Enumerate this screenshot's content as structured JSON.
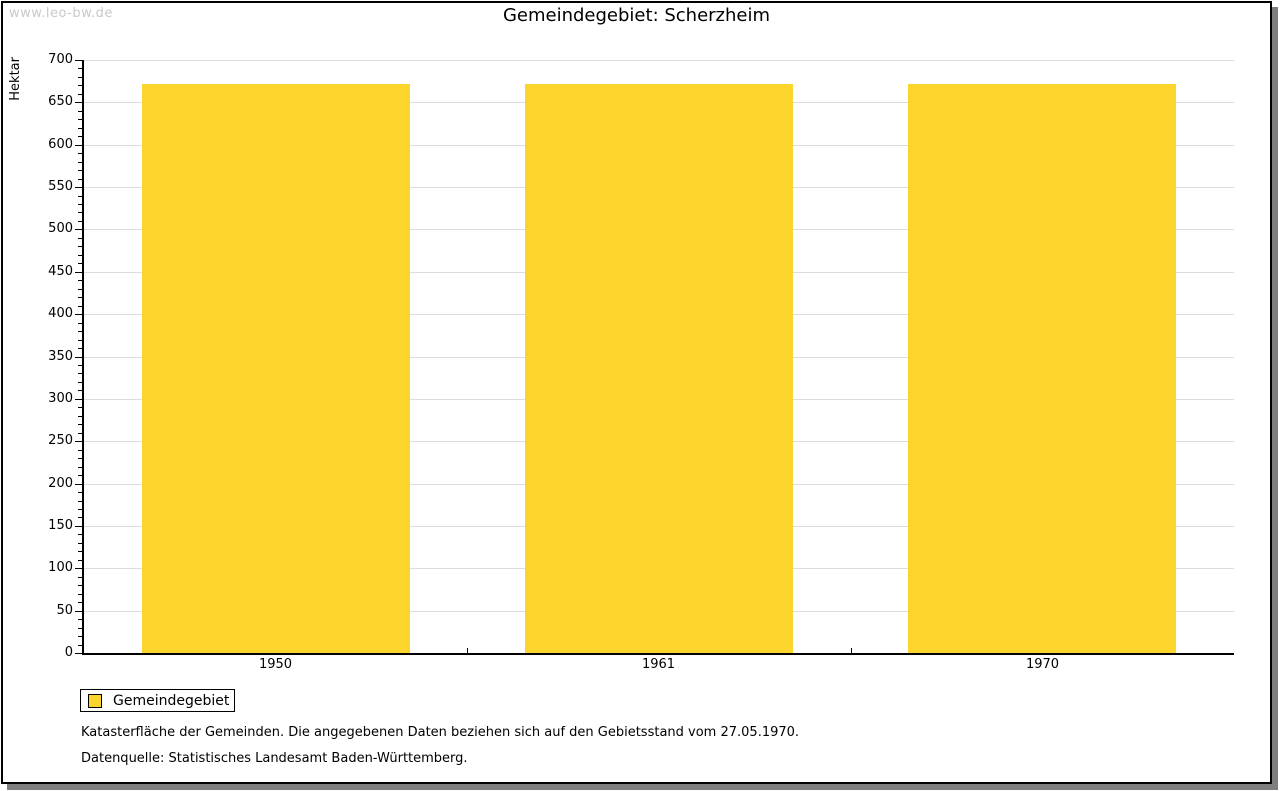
{
  "watermark": "www.leo-bw.de",
  "title": "Gemeindegebiet: Scherzheim",
  "chart_data": {
    "type": "bar",
    "title": "Gemeindegebiet: Scherzheim",
    "categories": [
      "1950",
      "1961",
      "1970"
    ],
    "series": [
      {
        "name": "Gemeindegebiet",
        "values": [
          672,
          672,
          672
        ]
      }
    ],
    "xlabel": "",
    "ylabel": "Hektar",
    "ylim": [
      0,
      700
    ],
    "ytick_interval": 50,
    "minor_tick_interval": 10,
    "grid": true,
    "legend_position": "bottom-left",
    "bar_color": "#fcd42c",
    "gridline_color": "#dcdcdc"
  },
  "legend": {
    "items": [
      {
        "label": "Gemeindegebiet",
        "color": "#fcd42c"
      }
    ]
  },
  "footnotes": [
    "Katasterfläche der Gemeinden. Die angegebenen Daten beziehen sich auf den Gebietsstand vom 27.05.1970.",
    "Datenquelle: Statistisches Landesamt Baden-Württemberg."
  ]
}
